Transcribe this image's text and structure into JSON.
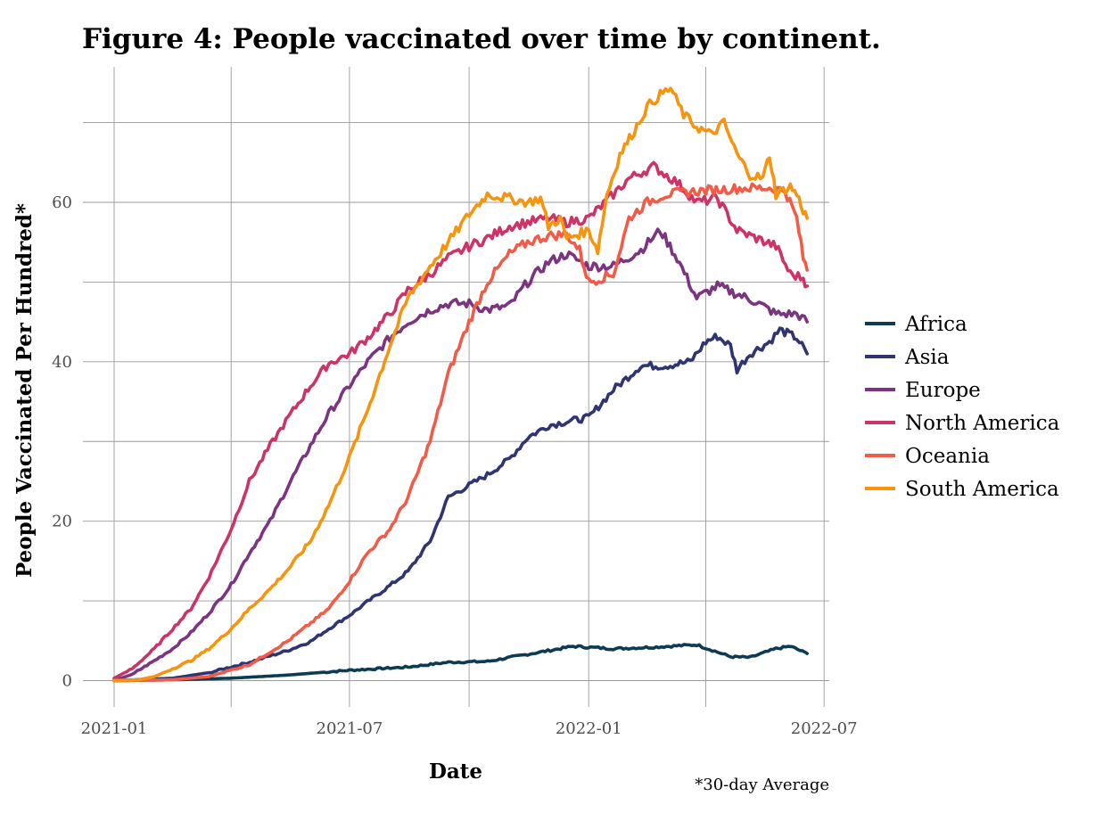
{
  "chart_data": {
    "type": "line",
    "title": "Figure 4: People vaccinated over time by continent.",
    "xlabel": "Date",
    "ylabel": "People Vaccinated Per Hundred*",
    "caption": "*30-day Average",
    "x_ticks": [
      "2021-01",
      "2021-07",
      "2022-01",
      "2022-07"
    ],
    "y_ticks": [
      0,
      20,
      40,
      60
    ],
    "xlim": [
      "2020-12-08",
      "2022-07-05"
    ],
    "ylim": [
      -3.3,
      77
    ],
    "grid": true,
    "legend_position": "right",
    "series": [
      {
        "name": "Africa",
        "color": "#0d3b53",
        "points": [
          [
            "2021-01-01",
            0.0
          ],
          [
            "2021-02-15",
            0.1
          ],
          [
            "2021-04-01",
            0.3
          ],
          [
            "2021-05-15",
            0.7
          ],
          [
            "2021-07-01",
            1.3
          ],
          [
            "2021-08-15",
            1.7
          ],
          [
            "2021-09-15",
            2.3
          ],
          [
            "2021-10-15",
            2.4
          ],
          [
            "2021-11-15",
            3.3
          ],
          [
            "2021-12-20",
            4.3
          ],
          [
            "2022-01-20",
            4.0
          ],
          [
            "2022-02-20",
            4.2
          ],
          [
            "2022-03-25",
            4.5
          ],
          [
            "2022-04-20",
            3.0
          ],
          [
            "2022-05-05",
            2.9
          ],
          [
            "2022-05-25",
            4.0
          ],
          [
            "2022-06-05",
            4.3
          ],
          [
            "2022-06-18",
            3.4
          ]
        ]
      },
      {
        "name": "Asia",
        "color": "#2f3570",
        "points": [
          [
            "2021-01-01",
            0.0
          ],
          [
            "2021-02-15",
            0.3
          ],
          [
            "2021-03-15",
            1.0
          ],
          [
            "2021-04-15",
            2.3
          ],
          [
            "2021-05-15",
            3.8
          ],
          [
            "2021-06-01",
            4.9
          ],
          [
            "2021-06-15",
            6.5
          ],
          [
            "2021-07-01",
            8.2
          ],
          [
            "2021-07-15",
            9.9
          ],
          [
            "2021-08-01",
            11.9
          ],
          [
            "2021-08-15",
            13.7
          ],
          [
            "2021-09-01",
            17.5
          ],
          [
            "2021-09-15",
            23.0
          ],
          [
            "2021-10-01",
            24.5
          ],
          [
            "2021-10-15",
            25.8
          ],
          [
            "2021-11-01",
            27.8
          ],
          [
            "2021-11-15",
            30.5
          ],
          [
            "2021-12-01",
            32.0
          ],
          [
            "2021-12-15",
            32.5
          ],
          [
            "2022-01-01",
            33.0
          ],
          [
            "2022-01-20",
            36.5
          ],
          [
            "2022-02-10",
            39.5
          ],
          [
            "2022-03-01",
            39.5
          ],
          [
            "2022-03-20",
            40.0
          ],
          [
            "2022-04-01",
            42.5
          ],
          [
            "2022-04-10",
            43.2
          ],
          [
            "2022-04-20",
            42.0
          ],
          [
            "2022-04-25",
            39.0
          ],
          [
            "2022-05-05",
            41.0
          ],
          [
            "2022-05-20",
            42.5
          ],
          [
            "2022-05-28",
            44.0
          ],
          [
            "2022-06-10",
            43.0
          ],
          [
            "2022-06-18",
            41.0
          ]
        ]
      },
      {
        "name": "Europe",
        "color": "#7b3580",
        "points": [
          [
            "2021-01-01",
            0.0
          ],
          [
            "2021-01-15",
            0.8
          ],
          [
            "2021-02-01",
            2.5
          ],
          [
            "2021-02-15",
            4.0
          ],
          [
            "2021-03-01",
            6.0
          ],
          [
            "2021-03-15",
            8.5
          ],
          [
            "2021-04-01",
            12.0
          ],
          [
            "2021-04-15",
            16.0
          ],
          [
            "2021-05-01",
            20.0
          ],
          [
            "2021-05-15",
            24.5
          ],
          [
            "2021-06-01",
            29.5
          ],
          [
            "2021-06-15",
            33.5
          ],
          [
            "2021-07-01",
            37.0
          ],
          [
            "2021-07-15",
            40.0
          ],
          [
            "2021-08-01",
            43.0
          ],
          [
            "2021-08-15",
            45.0
          ],
          [
            "2021-09-01",
            46.5
          ],
          [
            "2021-09-15",
            47.3
          ],
          [
            "2021-10-01",
            47.3
          ],
          [
            "2021-10-15",
            46.5
          ],
          [
            "2021-11-01",
            47.0
          ],
          [
            "2021-11-15",
            50.0
          ],
          [
            "2021-12-01",
            52.5
          ],
          [
            "2021-12-15",
            53.5
          ],
          [
            "2022-01-01",
            52.0
          ],
          [
            "2022-01-20",
            52.0
          ],
          [
            "2022-02-10",
            54.0
          ],
          [
            "2022-02-25",
            56.5
          ],
          [
            "2022-03-10",
            53.0
          ],
          [
            "2022-03-25",
            48.0
          ],
          [
            "2022-04-10",
            49.5
          ],
          [
            "2022-04-25",
            48.5
          ],
          [
            "2022-05-10",
            47.5
          ],
          [
            "2022-05-25",
            46.0
          ],
          [
            "2022-06-10",
            46.0
          ],
          [
            "2022-06-18",
            45.0
          ]
        ]
      },
      {
        "name": "North America",
        "color": "#cc3468",
        "points": [
          [
            "2021-01-01",
            0.3
          ],
          [
            "2021-01-15",
            1.5
          ],
          [
            "2021-02-01",
            4.0
          ],
          [
            "2021-02-15",
            6.5
          ],
          [
            "2021-03-01",
            9.0
          ],
          [
            "2021-03-15",
            13.0
          ],
          [
            "2021-04-01",
            19.0
          ],
          [
            "2021-04-15",
            25.0
          ],
          [
            "2021-05-01",
            29.5
          ],
          [
            "2021-05-15",
            33.0
          ],
          [
            "2021-06-01",
            37.0
          ],
          [
            "2021-06-15",
            39.8
          ],
          [
            "2021-07-01",
            41.0
          ],
          [
            "2021-07-15",
            43.0
          ],
          [
            "2021-08-01",
            46.0
          ],
          [
            "2021-08-15",
            49.0
          ],
          [
            "2021-09-01",
            51.0
          ],
          [
            "2021-09-15",
            53.0
          ],
          [
            "2021-10-01",
            54.5
          ],
          [
            "2021-10-15",
            55.5
          ],
          [
            "2021-11-01",
            57.0
          ],
          [
            "2021-11-15",
            57.5
          ],
          [
            "2021-12-01",
            58.0
          ],
          [
            "2021-12-15",
            57.5
          ],
          [
            "2022-01-01",
            58.0
          ],
          [
            "2022-01-20",
            61.0
          ],
          [
            "2022-02-01",
            63.0
          ],
          [
            "2022-02-20",
            64.5
          ],
          [
            "2022-03-10",
            62.5
          ],
          [
            "2022-03-25",
            60.0
          ],
          [
            "2022-04-10",
            60.5
          ],
          [
            "2022-04-25",
            56.5
          ],
          [
            "2022-05-10",
            55.5
          ],
          [
            "2022-05-25",
            54.5
          ],
          [
            "2022-06-05",
            51.0
          ],
          [
            "2022-06-15",
            50.5
          ],
          [
            "2022-06-18",
            49.5
          ]
        ]
      },
      {
        "name": "Oceania",
        "color": "#f25b47",
        "points": [
          [
            "2021-01-01",
            0.0
          ],
          [
            "2021-02-15",
            0.1
          ],
          [
            "2021-03-15",
            0.5
          ],
          [
            "2021-04-15",
            2.0
          ],
          [
            "2021-05-15",
            5.0
          ],
          [
            "2021-06-15",
            9.0
          ],
          [
            "2021-07-01",
            12.5
          ],
          [
            "2021-07-15",
            16.0
          ],
          [
            "2021-08-01",
            19.0
          ],
          [
            "2021-08-15",
            23.0
          ],
          [
            "2021-09-01",
            30.0
          ],
          [
            "2021-09-15",
            38.5
          ],
          [
            "2021-10-01",
            45.0
          ],
          [
            "2021-10-15",
            50.0
          ],
          [
            "2021-11-01",
            53.5
          ],
          [
            "2021-11-15",
            55.0
          ],
          [
            "2021-12-01",
            55.8
          ],
          [
            "2021-12-15",
            56.0
          ],
          [
            "2021-12-25",
            54.0
          ],
          [
            "2022-01-01",
            50.0
          ],
          [
            "2022-01-20",
            51.0
          ],
          [
            "2022-02-01",
            58.0
          ],
          [
            "2022-02-15",
            60.0
          ],
          [
            "2022-03-01",
            61.0
          ],
          [
            "2022-04-01",
            61.5
          ],
          [
            "2022-05-01",
            61.8
          ],
          [
            "2022-05-20",
            61.8
          ],
          [
            "2022-06-01",
            61.5
          ],
          [
            "2022-06-10",
            58.0
          ],
          [
            "2022-06-15",
            53.0
          ],
          [
            "2022-06-18",
            51.5
          ]
        ]
      },
      {
        "name": "South America",
        "color": "#f7940f",
        "points": [
          [
            "2021-01-01",
            0.0
          ],
          [
            "2021-01-20",
            0.1
          ],
          [
            "2021-02-01",
            0.5
          ],
          [
            "2021-02-15",
            1.5
          ],
          [
            "2021-03-01",
            2.5
          ],
          [
            "2021-03-15",
            4.0
          ],
          [
            "2021-04-01",
            6.5
          ],
          [
            "2021-04-15",
            9.0
          ],
          [
            "2021-05-01",
            11.5
          ],
          [
            "2021-05-15",
            14.0
          ],
          [
            "2021-06-01",
            17.5
          ],
          [
            "2021-06-15",
            22.0
          ],
          [
            "2021-07-01",
            28.0
          ],
          [
            "2021-07-15",
            34.0
          ],
          [
            "2021-08-01",
            42.0
          ],
          [
            "2021-08-15",
            48.0
          ],
          [
            "2021-09-01",
            52.0
          ],
          [
            "2021-09-15",
            55.0
          ],
          [
            "2021-10-01",
            58.5
          ],
          [
            "2021-10-15",
            61.0
          ],
          [
            "2021-11-01",
            60.5
          ],
          [
            "2021-11-15",
            60.0
          ],
          [
            "2021-11-25",
            60.5
          ],
          [
            "2021-12-01",
            57.0
          ],
          [
            "2021-12-10",
            58.0
          ],
          [
            "2021-12-15",
            55.5
          ],
          [
            "2022-01-01",
            56.5
          ],
          [
            "2022-01-08",
            54.0
          ],
          [
            "2022-01-15",
            61.0
          ],
          [
            "2022-01-25",
            66.0
          ],
          [
            "2022-02-05",
            69.0
          ],
          [
            "2022-02-15",
            72.0
          ],
          [
            "2022-02-25",
            73.5
          ],
          [
            "2022-03-05",
            74.3
          ],
          [
            "2022-03-15",
            71.0
          ],
          [
            "2022-03-25",
            69.5
          ],
          [
            "2022-04-05",
            68.5
          ],
          [
            "2022-04-15",
            70.0
          ],
          [
            "2022-04-25",
            66.0
          ],
          [
            "2022-05-05",
            63.5
          ],
          [
            "2022-05-15",
            63.0
          ],
          [
            "2022-05-20",
            66.0
          ],
          [
            "2022-05-25",
            61.0
          ],
          [
            "2022-06-05",
            62.0
          ],
          [
            "2022-06-10",
            61.0
          ],
          [
            "2022-06-15",
            59.0
          ],
          [
            "2022-06-18",
            58.0
          ]
        ]
      }
    ]
  }
}
